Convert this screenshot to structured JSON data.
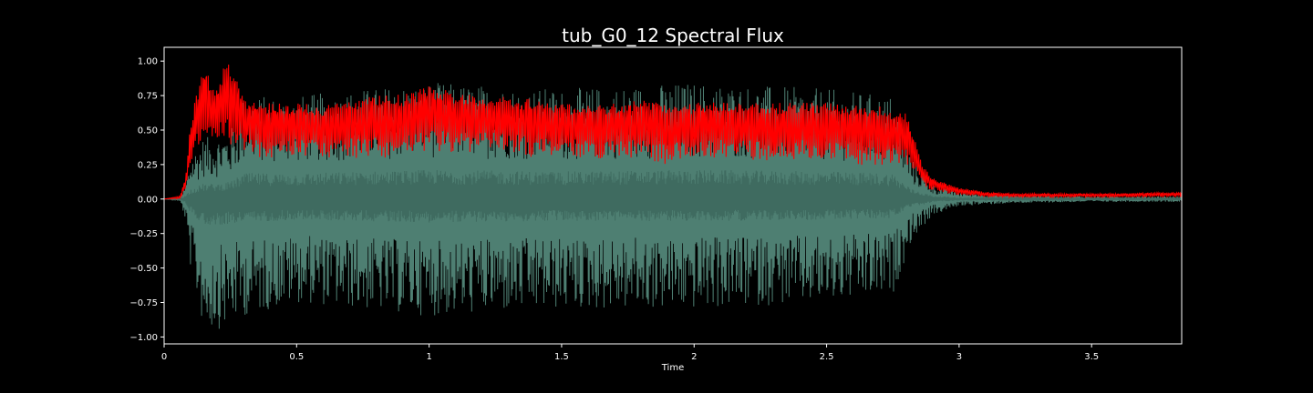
{
  "chart_data": {
    "type": "line",
    "title": "tub_G0_12 Spectral Flux",
    "xlabel": "Time",
    "ylabel": "",
    "xlim": [
      0,
      3.84
    ],
    "ylim": [
      -1.05,
      1.1
    ],
    "xticks": [
      0,
      0.5,
      1,
      1.5,
      2,
      2.5,
      3,
      3.5
    ],
    "xtick_labels": [
      "0",
      "0.5",
      "1",
      "1.5",
      "2",
      "2.5",
      "3",
      "3.5"
    ],
    "yticks": [
      -1.0,
      -0.75,
      -0.5,
      -0.25,
      0.0,
      0.25,
      0.5,
      0.75,
      1.0
    ],
    "ytick_labels": [
      "−1.00",
      "−0.75",
      "−0.50",
      "−0.25",
      "0.00",
      "0.25",
      "0.50",
      "0.75",
      "1.00"
    ],
    "grid": false,
    "background": "#000000",
    "series": [
      {
        "kind": "waveform",
        "color": "#4e7f72",
        "envelope": {
          "x": [
            0,
            0.06,
            0.08,
            0.1,
            0.15,
            0.2,
            0.25,
            0.3,
            0.5,
            1.0,
            1.5,
            2.0,
            2.5,
            2.75,
            2.82,
            2.9,
            3.0,
            3.2,
            3.5,
            3.84
          ],
          "max": [
            0.0,
            0.01,
            0.1,
            0.3,
            0.45,
            0.45,
            0.5,
            0.75,
            0.75,
            0.85,
            0.8,
            0.85,
            0.8,
            0.75,
            0.3,
            0.1,
            0.05,
            0.03,
            0.02,
            0.02
          ],
          "min": [
            0.0,
            -0.01,
            -0.15,
            -0.5,
            -0.95,
            -0.95,
            -0.9,
            -0.85,
            -0.75,
            -0.85,
            -0.8,
            -0.8,
            -0.75,
            -0.7,
            -0.3,
            -0.12,
            -0.05,
            -0.03,
            -0.02,
            -0.02
          ]
        }
      },
      {
        "kind": "spectral-flux",
        "color": "#ff0000",
        "values": {
          "x": [
            0,
            0.06,
            0.08,
            0.1,
            0.12,
            0.15,
            0.18,
            0.2,
            0.22,
            0.25,
            0.3,
            0.35,
            0.45,
            0.5,
            0.6,
            0.7,
            0.8,
            0.9,
            1.0,
            1.1,
            1.2,
            1.3,
            1.4,
            1.5,
            1.6,
            1.7,
            1.8,
            1.9,
            2.0,
            2.1,
            2.2,
            2.3,
            2.4,
            2.5,
            2.6,
            2.7,
            2.8,
            2.83,
            2.86,
            2.9,
            3.0,
            3.1,
            3.2,
            3.4,
            3.6,
            3.84
          ],
          "high": [
            0.0,
            0.02,
            0.15,
            0.55,
            0.75,
            0.98,
            0.85,
            0.8,
            0.95,
            1.0,
            0.75,
            0.7,
            0.7,
            0.7,
            0.68,
            0.72,
            0.75,
            0.76,
            0.82,
            0.78,
            0.76,
            0.74,
            0.73,
            0.7,
            0.68,
            0.7,
            0.72,
            0.7,
            0.7,
            0.7,
            0.7,
            0.7,
            0.7,
            0.7,
            0.68,
            0.68,
            0.62,
            0.45,
            0.25,
            0.15,
            0.08,
            0.05,
            0.04,
            0.04,
            0.04,
            0.05
          ],
          "low": [
            0.0,
            0.0,
            0.05,
            0.2,
            0.3,
            0.4,
            0.35,
            0.3,
            0.35,
            0.3,
            0.3,
            0.25,
            0.25,
            0.28,
            0.25,
            0.25,
            0.25,
            0.25,
            0.3,
            0.28,
            0.3,
            0.3,
            0.25,
            0.28,
            0.25,
            0.25,
            0.25,
            0.2,
            0.25,
            0.25,
            0.25,
            0.2,
            0.25,
            0.25,
            0.2,
            0.2,
            0.2,
            0.15,
            0.08,
            0.05,
            0.02,
            0.01,
            0.01,
            0.01,
            0.01,
            0.01
          ]
        }
      }
    ]
  }
}
